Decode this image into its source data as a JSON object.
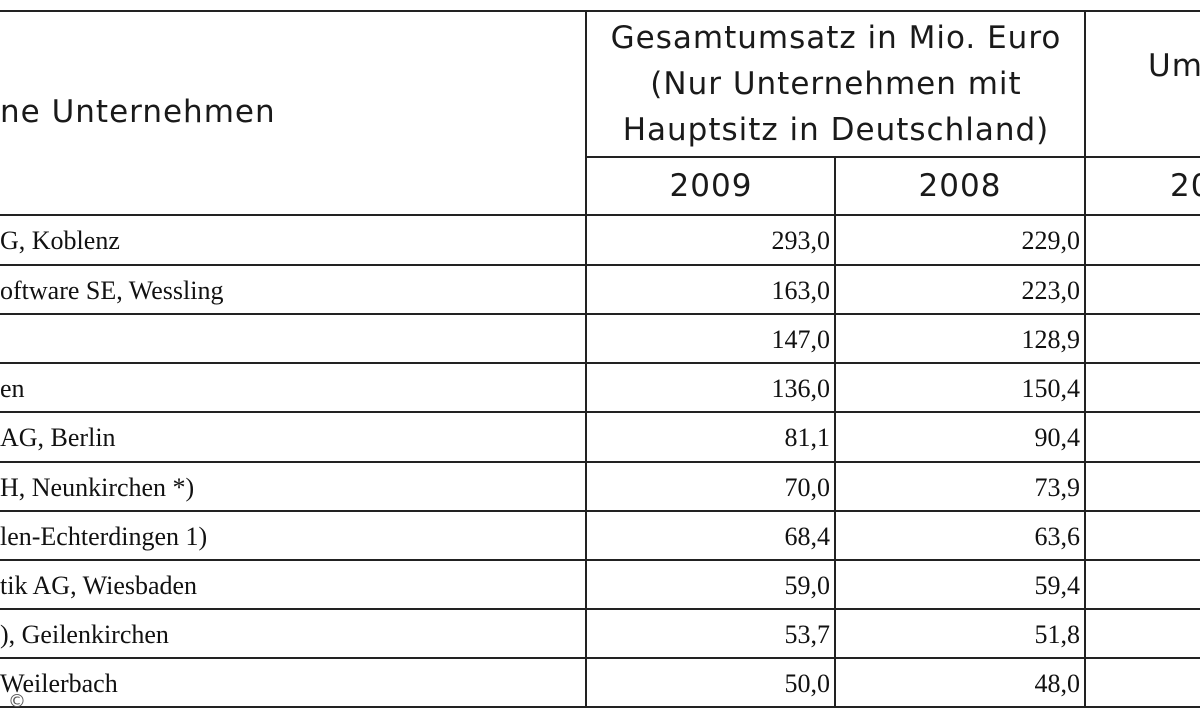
{
  "header": {
    "company_col": "ne Unternehmen",
    "revenue_title_1": "Gesamtumsatz in Mio. Euro",
    "revenue_title_2": "(Nur Unternehmen mit",
    "revenue_title_3": "Hauptsitz in Deutschland)",
    "year_2009": "2009",
    "year_2008": "2008",
    "cut_title": "Um",
    "cut_year": "20"
  },
  "rows": [
    {
      "name": "G, Koblenz",
      "v2009": "293,0",
      "v2008": "229,0"
    },
    {
      "name": "oftware SE, Wessling",
      "v2009": "163,0",
      "v2008": "223,0"
    },
    {
      "name": "",
      "v2009": "147,0",
      "v2008": "128,9"
    },
    {
      "name": "en",
      "v2009": "136,0",
      "v2008": "150,4"
    },
    {
      "name": "AG, Berlin",
      "v2009": "81,1",
      "v2008": "90,4"
    },
    {
      "name": "H, Neunkirchen *)",
      "v2009": "70,0",
      "v2008": "73,9"
    },
    {
      "name": "len-Echterdingen 1)",
      "v2009": "68,4",
      "v2008": "63,6"
    },
    {
      "name": "tik AG, Wiesbaden",
      "v2009": "59,0",
      "v2008": "59,4"
    },
    {
      "name": "), Geilenkirchen",
      "v2009": "53,7",
      "v2008": "51,8"
    },
    {
      "name": "Weilerbach",
      "v2009": "50,0",
      "v2008": "48,0"
    }
  ],
  "watermark": "©"
}
